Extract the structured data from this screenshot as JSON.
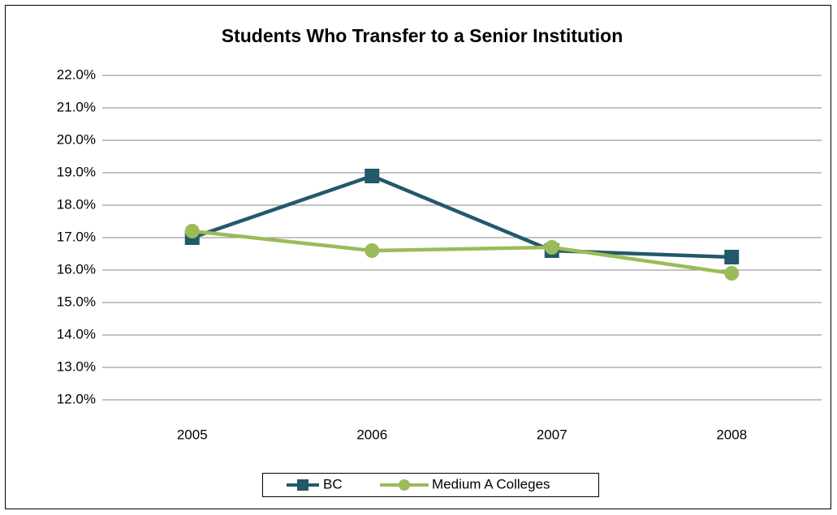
{
  "chart_data": {
    "type": "line",
    "title": "Students Who Transfer to a Senior Institution",
    "categories": [
      "2005",
      "2006",
      "2007",
      "2008"
    ],
    "series": [
      {
        "name": "BC",
        "color": "#23596a",
        "marker": "square",
        "values": [
          17.0,
          18.9,
          16.6,
          16.4
        ]
      },
      {
        "name": "Medium A Colleges",
        "color": "#9bbb59",
        "marker": "circle",
        "values": [
          17.2,
          16.6,
          16.7,
          15.9
        ]
      }
    ],
    "ylim": [
      12,
      22
    ],
    "yticks": [
      {
        "value": 12,
        "label": "12.0%"
      },
      {
        "value": 13,
        "label": "13.0%"
      },
      {
        "value": 14,
        "label": "14.0%"
      },
      {
        "value": 15,
        "label": "15.0%"
      },
      {
        "value": 16,
        "label": "16.0%"
      },
      {
        "value": 17,
        "label": "17.0%"
      },
      {
        "value": 18,
        "label": "18.0%"
      },
      {
        "value": 19,
        "label": "19.0%"
      },
      {
        "value": 20,
        "label": "20.0%"
      },
      {
        "value": 21,
        "label": "21.0%"
      },
      {
        "value": 22,
        "label": "22.0%"
      }
    ],
    "grid": true,
    "legend": "bottom"
  }
}
